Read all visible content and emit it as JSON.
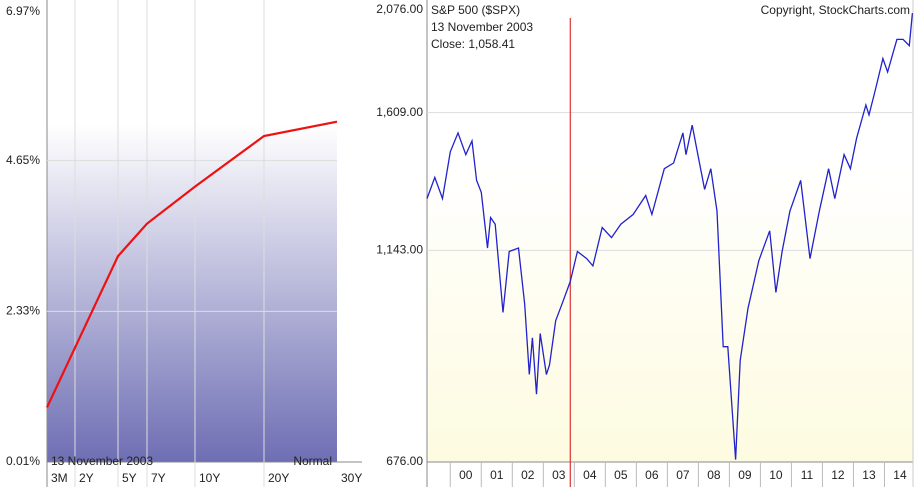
{
  "chart_data": [
    {
      "type": "line",
      "categories": [
        "3M",
        "2Y",
        "5Y",
        "7Y",
        "10Y",
        "20Y",
        "30Y"
      ],
      "values": [
        0.85,
        1.77,
        3.18,
        3.68,
        4.25,
        5.03,
        5.25
      ],
      "color": "#ee1111",
      "ylim": [
        0.01,
        6.97
      ],
      "yticks": [
        {
          "value": 0.01,
          "label": "0.01%"
        },
        {
          "value": 2.33,
          "label": "2.33%"
        },
        {
          "value": 4.65,
          "label": "4.65%"
        },
        {
          "value": 6.97,
          "label": "6.97%"
        }
      ],
      "grid": true,
      "date": "13  November 2003",
      "shape": "Normal"
    },
    {
      "type": "line",
      "title": "S&P 500 ($SPX)",
      "copyright": "Copyright, StockCharts.com",
      "color": "#2222cc",
      "log_scale": true,
      "x": [
        1999.25,
        1999.5,
        1999.75,
        2000.0,
        2000.25,
        2000.5,
        2000.7,
        2000.85,
        2001.0,
        2001.2,
        2001.3,
        2001.45,
        2001.7,
        2001.9,
        2002.2,
        2002.4,
        2002.55,
        2002.65,
        2002.78,
        2002.9,
        2003.1,
        2003.2,
        2003.4,
        2003.6,
        2003.87,
        2004.1,
        2004.4,
        2004.6,
        2004.9,
        2005.2,
        2005.5,
        2005.9,
        2006.3,
        2006.5,
        2006.9,
        2007.2,
        2007.5,
        2007.6,
        2007.8,
        2007.95,
        2008.2,
        2008.4,
        2008.6,
        2008.8,
        2008.95,
        2009.2,
        2009.35,
        2009.6,
        2009.95,
        2010.3,
        2010.5,
        2010.7,
        2010.95,
        2011.3,
        2011.6,
        2011.9,
        2012.2,
        2012.4,
        2012.7,
        2012.9,
        2013.1,
        2013.4,
        2013.5,
        2013.7,
        2013.95,
        2014.1,
        2014.4,
        2014.6,
        2014.8,
        2014.9
      ],
      "values": [
        1300,
        1370,
        1300,
        1460,
        1530,
        1450,
        1500,
        1360,
        1320,
        1150,
        1240,
        1220,
        980,
        1140,
        1150,
        1000,
        840,
        920,
        800,
        930,
        840,
        860,
        960,
        1000,
        1058.41,
        1140,
        1120,
        1100,
        1210,
        1180,
        1220,
        1250,
        1310,
        1250,
        1400,
        1420,
        1530,
        1450,
        1560,
        1470,
        1330,
        1400,
        1260,
        900,
        900,
        680,
        870,
        990,
        1115,
        1200,
        1030,
        1140,
        1260,
        1360,
        1120,
        1260,
        1400,
        1300,
        1450,
        1400,
        1510,
        1640,
        1600,
        1700,
        1840,
        1780,
        1930,
        1930,
        1900,
        2060
      ],
      "xlim": [
        1999.25,
        2014.92
      ],
      "xticks": [
        {
          "value": 2000,
          "label": "00"
        },
        {
          "value": 2001,
          "label": "01"
        },
        {
          "value": 2002,
          "label": "02"
        },
        {
          "value": 2003,
          "label": "03"
        },
        {
          "value": 2004,
          "label": "04"
        },
        {
          "value": 2005,
          "label": "05"
        },
        {
          "value": 2006,
          "label": "06"
        },
        {
          "value": 2007,
          "label": "07"
        },
        {
          "value": 2008,
          "label": "08"
        },
        {
          "value": 2009,
          "label": "09"
        },
        {
          "value": 2010,
          "label": "10"
        },
        {
          "value": 2011,
          "label": "11"
        },
        {
          "value": 2012,
          "label": "12"
        },
        {
          "value": 2013,
          "label": "13"
        },
        {
          "value": 2014,
          "label": "14"
        }
      ],
      "ylim": [
        676,
        2076
      ],
      "yticks": [
        {
          "value": 676,
          "label": "676.00"
        },
        {
          "value": 1143,
          "label": "1,143.00"
        },
        {
          "value": 1609,
          "label": "1,609.00"
        },
        {
          "value": 2076,
          "label": "2,076.00"
        }
      ],
      "grid": true,
      "marker": {
        "x": 2003.87,
        "label": "13  November 2003",
        "value": 1058.41,
        "value_label": "Close: 1,058.41",
        "color": "#dd3333"
      }
    }
  ]
}
